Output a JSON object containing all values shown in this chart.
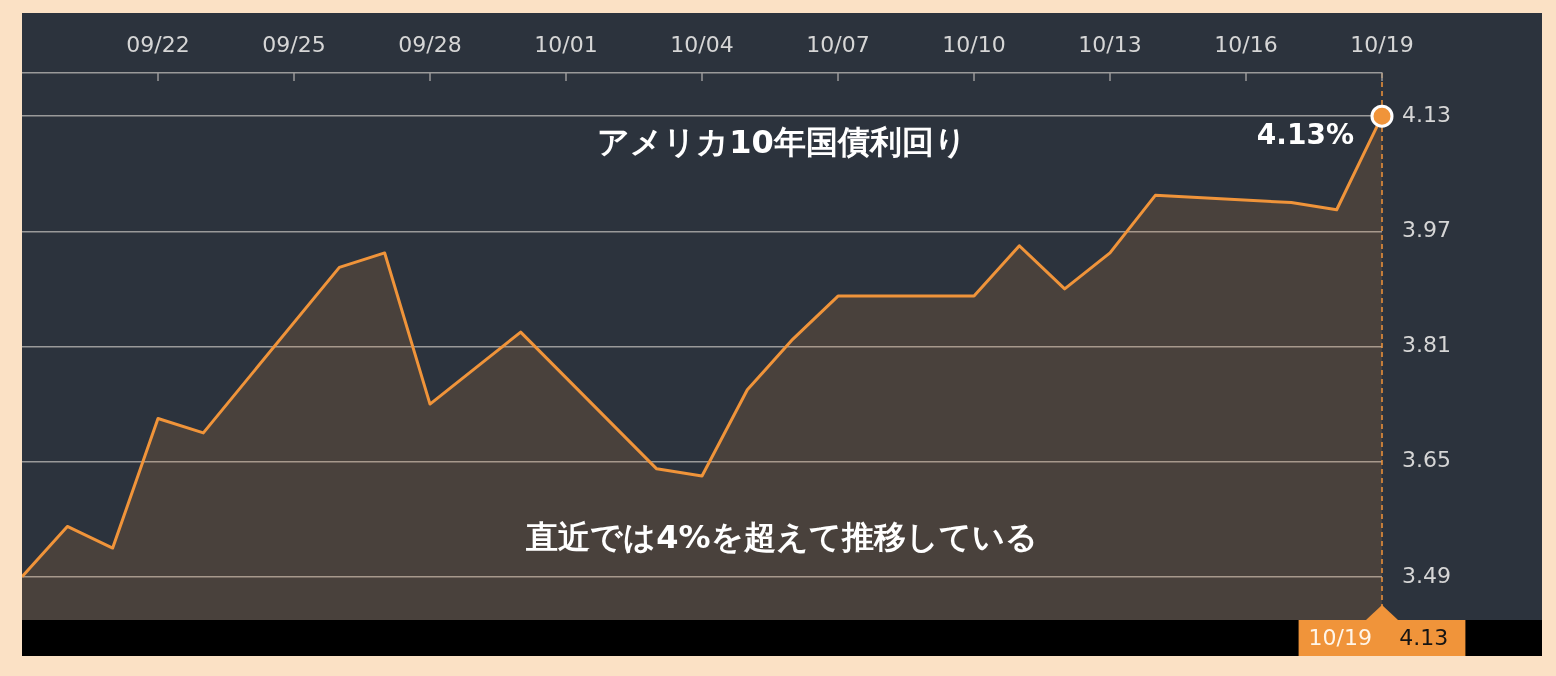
{
  "chart_data": {
    "type": "area",
    "title": "アメリカ10年国債利回り",
    "annotations": [
      "直近では4%を超えて推移している",
      "4.13"
    ],
    "x": [
      "--09-19",
      "--09-20",
      "--09-21",
      "--09-22",
      "--09-23",
      "--09-26",
      "--09-27",
      "--09-28",
      "--09-29",
      "--09-30",
      "--10-03",
      "--10-04",
      "--10-05",
      "--10-06",
      "--10-07",
      "--10-10",
      "--10-11",
      "--10-12",
      "--10-13",
      "--10-14",
      "--10-17",
      "--10-18",
      "--10-19"
    ],
    "series": [
      {
        "color": "#f0943a",
        "values": [
          3.49,
          3.56,
          3.53,
          3.71,
          3.69,
          3.92,
          3.94,
          3.73,
          3.78,
          3.83,
          3.64,
          3.63,
          3.75,
          3.82,
          3.88,
          3.88,
          3.95,
          3.89,
          3.94,
          4.02,
          4.01,
          4.0,
          4.13
        ]
      },
      {
        "type": "scatter",
        "x": [
          "--10-19"
        ],
        "values": [
          4.13
        ],
        "color": "#f0943a",
        "marker": "circle",
        "value_labels": [
          "4.13%"
        ]
      }
    ],
    "xlim": [
      "--09-19",
      "--10-19"
    ],
    "xticks": [
      {
        "value": "--09-22",
        "label": "09/22"
      },
      {
        "value": "--09-25",
        "label": "09/25"
      },
      {
        "value": "--09-28",
        "label": "09/28"
      },
      {
        "value": "--10-01",
        "label": "10/01"
      },
      {
        "value": "--10-04",
        "label": "10/04"
      },
      {
        "value": "--10-07",
        "label": "10/07"
      },
      {
        "value": "--10-10",
        "label": "10/10"
      },
      {
        "value": "--10-13",
        "label": "10/13"
      },
      {
        "value": "--10-16",
        "label": "10/16"
      },
      {
        "value": "--10-19",
        "label": "10/19"
      }
    ],
    "ylim": [
      3.43,
      4.19
    ],
    "yticks": [
      3.49,
      3.65,
      3.81,
      3.97,
      4.13
    ],
    "grid": "y",
    "ref_lines": [
      {
        "axis": "x",
        "value": "--10-19",
        "label": "10/19",
        "color": "#f0943a",
        "line_style": "dashed"
      }
    ]
  }
}
